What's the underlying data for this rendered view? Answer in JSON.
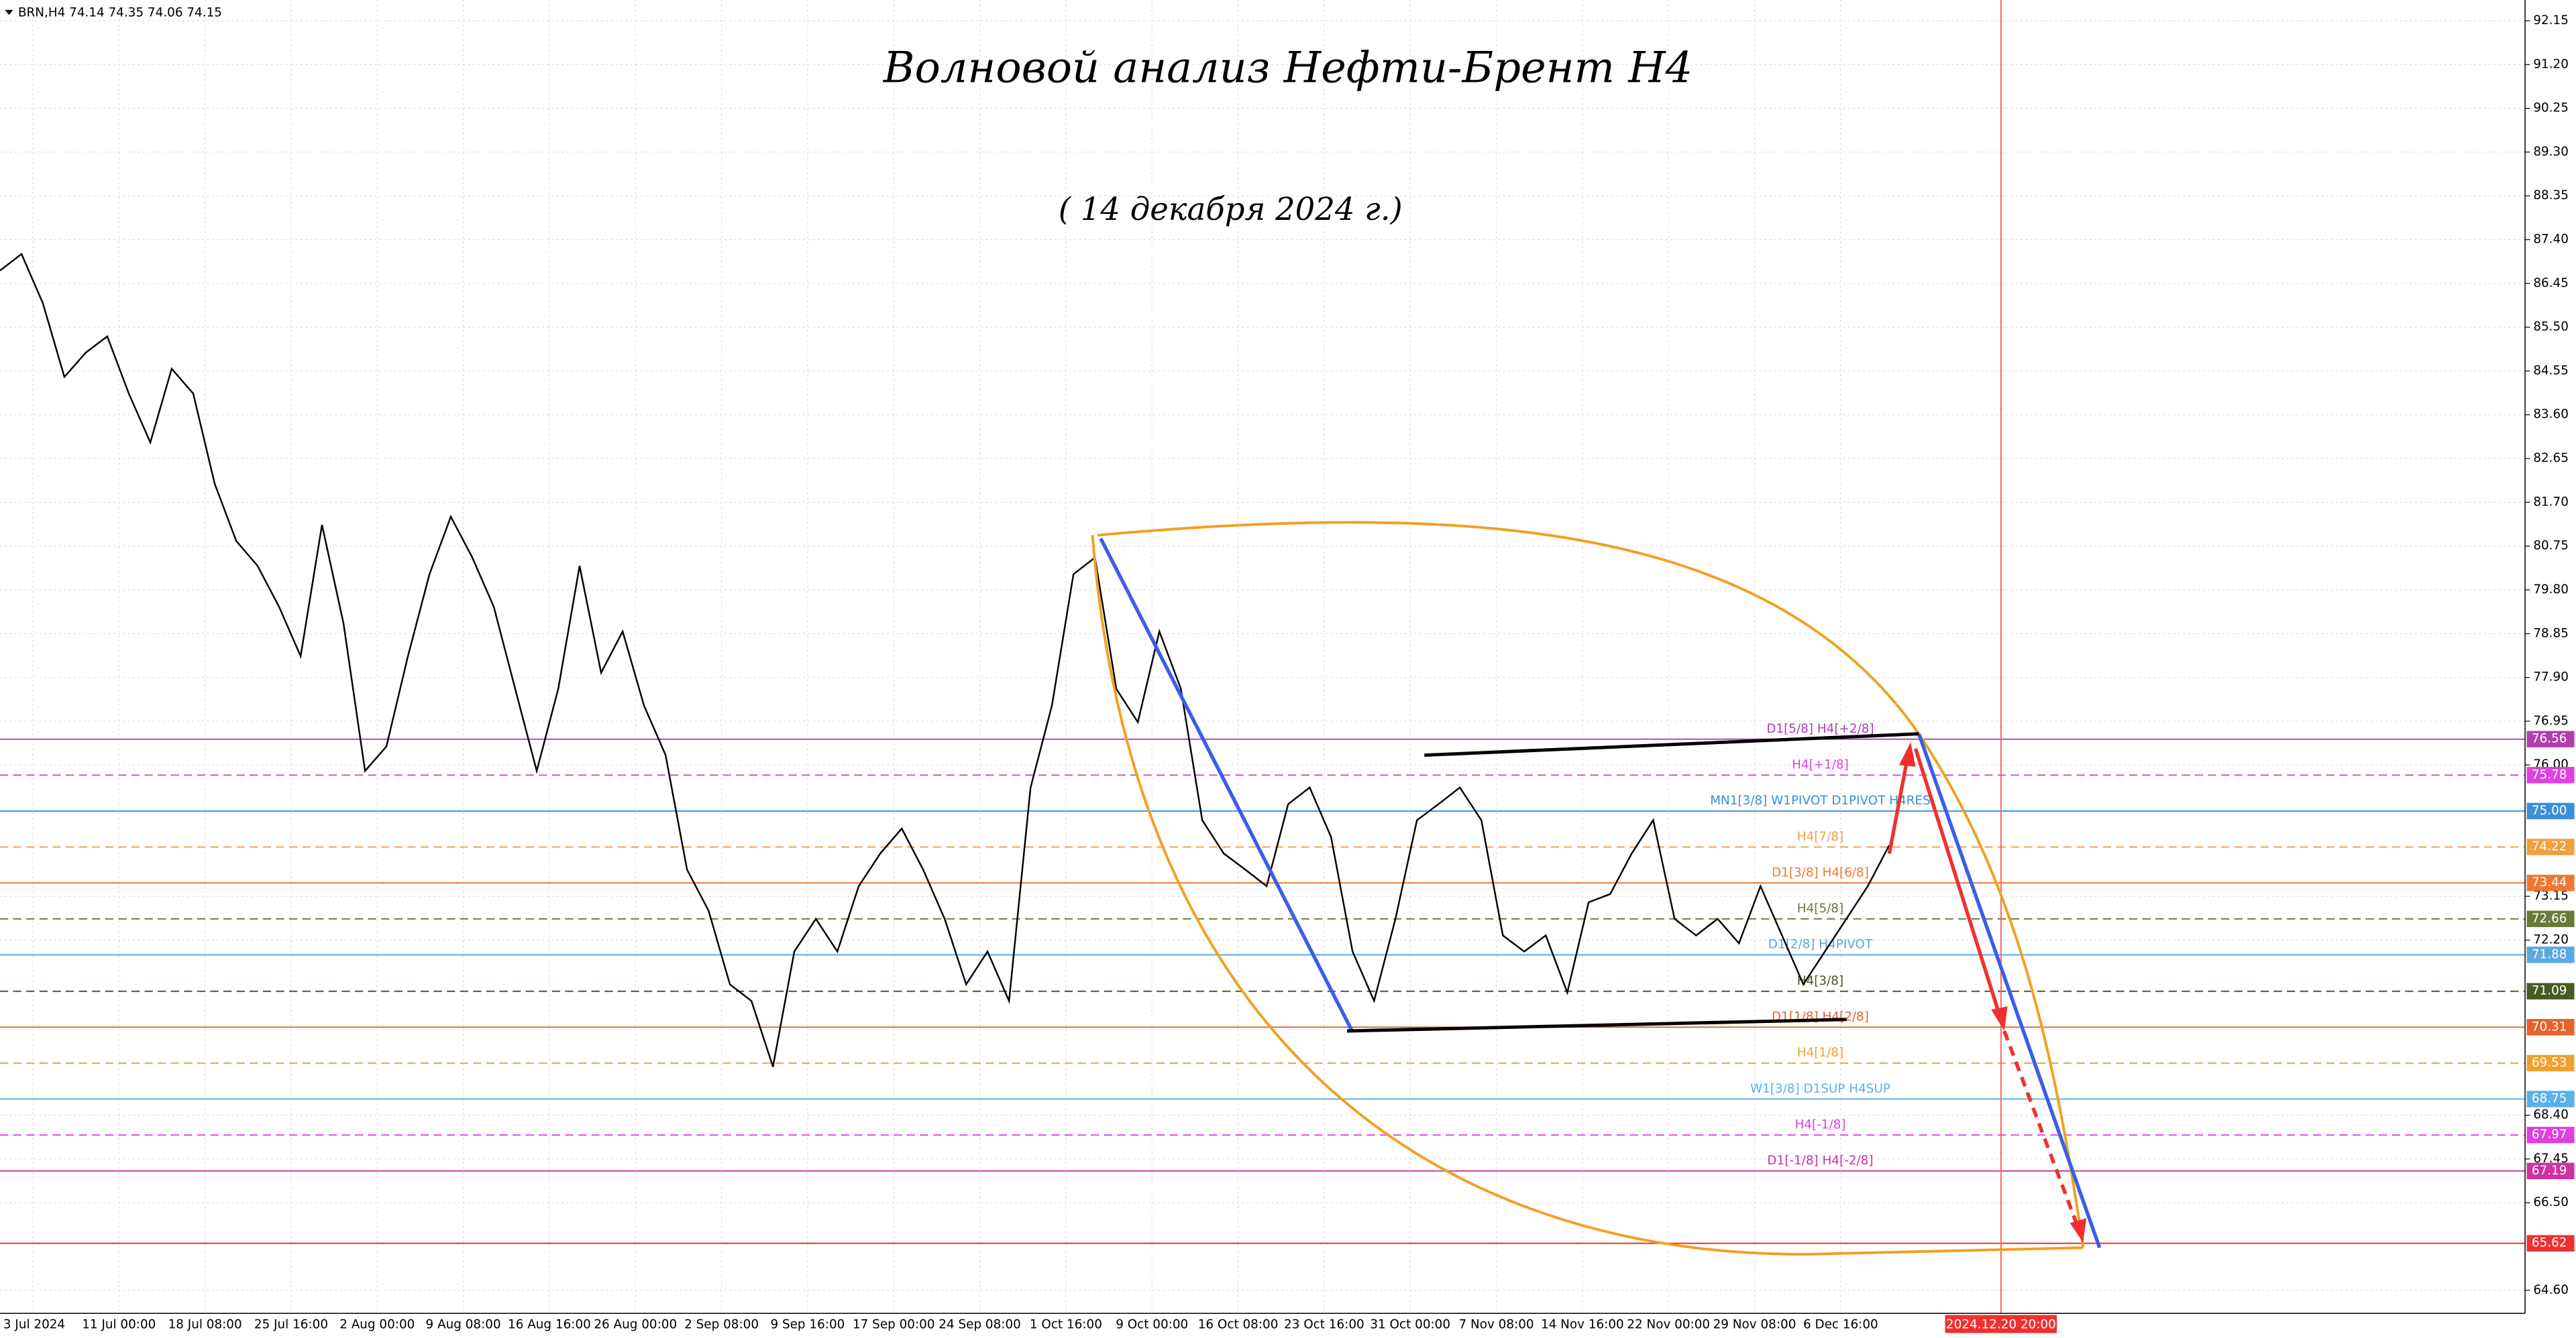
{
  "header": "BRN,H4  74.14 74.35 74.06 74.15",
  "chart_data": {
    "type": "line",
    "title": "Волновой анализ Нефти-Брент H4",
    "subtitle": "( 14 декабря 2024 г.)",
    "series": [
      {
        "name": "BRN",
        "color": "#000000",
        "values": [
          86.73,
          87.09,
          86.02,
          84.42,
          84.95,
          85.3,
          84.06,
          83.0,
          84.6,
          84.06,
          82.1,
          80.86,
          80.32,
          79.43,
          78.36,
          81.21,
          79.07,
          75.87,
          76.4,
          78.36,
          80.14,
          81.39,
          80.5,
          79.43,
          77.65,
          75.87,
          77.65,
          80.32,
          78.0,
          78.9,
          77.29,
          76.22,
          73.73,
          72.84,
          71.24,
          70.88,
          69.45,
          71.95,
          72.66,
          71.95,
          73.37,
          74.08,
          74.62,
          73.73,
          72.66,
          71.24,
          71.95,
          70.88,
          75.51,
          77.29,
          80.14,
          80.5,
          77.65,
          76.93,
          78.9,
          77.65,
          74.8,
          74.08,
          73.73,
          73.37,
          75.15,
          75.51,
          74.44,
          71.95,
          70.88,
          72.66,
          74.8,
          75.15,
          75.51,
          74.8,
          72.3,
          71.95,
          72.3,
          71.06,
          73.02,
          73.2,
          74.08,
          74.8,
          72.66,
          72.3,
          72.66,
          72.13,
          73.37,
          72.3,
          71.24,
          71.95,
          72.66,
          73.37,
          74.26
        ]
      }
    ],
    "ylim": [
      64.1,
      92.6
    ],
    "yticks": [
      92.15,
      {
        "value": 91.2,
        "label": "91.20"
      },
      90.25,
      {
        "value": 89.3,
        "label": "89.30"
      },
      88.35,
      {
        "value": 87.4,
        "label": "87.40"
      },
      86.45,
      {
        "value": 85.5,
        "label": "85.50"
      },
      84.55,
      {
        "value": 83.6,
        "label": "83.60"
      },
      82.65,
      {
        "value": 81.7,
        "label": "81.70"
      },
      80.75,
      {
        "value": 79.8,
        "label": "79.80"
      },
      78.85,
      {
        "value": 77.9,
        "label": "77.90"
      },
      76.95,
      {
        "value": 76,
        "label": "76.00"
      },
      73.15,
      {
        "value": 72.2,
        "label": "72.20"
      },
      {
        "value": 68.4,
        "label": "68.40"
      },
      67.45,
      {
        "value": 66.5,
        "label": "66.50"
      },
      {
        "value": 64.6,
        "label": "64.60"
      }
    ],
    "xtick_labels": [
      "3 Jul 2024",
      "11 Jul 00:00",
      "18 Jul 08:00",
      "25 Jul 16:00",
      "2 Aug 00:00",
      "9 Aug 08:00",
      "16 Aug 16:00",
      "26 Aug 00:00",
      "2 Sep 08:00",
      "9 Sep 16:00",
      "17 Sep 00:00",
      "24 Sep 08:00",
      "1 Oct 16:00",
      "9 Oct 00:00",
      "16 Oct 08:00",
      "23 Oct 16:00",
      "31 Oct 00:00",
      "7 Nov 08:00",
      "14 Nov 16:00",
      "22 Nov 00:00",
      "29 Nov 08:00",
      "6 Dec 16:00"
    ],
    "marker_label": "2024.12.20 20:00",
    "grid": true,
    "levels": [
      {
        "value": 76.56,
        "name": "D1[5/8] H4[+2/8]",
        "color": "#b040b0"
      },
      {
        "value": 75.78,
        "name": "H4[+1/8]",
        "color": "#e040e0",
        "dashed": true
      },
      {
        "value": 75,
        "label": "75.00",
        "name": "MN1[3/8] W1PIVOT D1PIVOT H4RES",
        "color": "#3a8fd8"
      },
      {
        "value": 74.22,
        "name": "H4[7/8]",
        "color": "#f0a040",
        "dashed": true
      },
      {
        "value": 73.44,
        "name": "D1[3/8] H4[6/8]",
        "color": "#f07830"
      },
      {
        "value": 72.66,
        "name": "H4[5/8]",
        "color": "#6b7a3a",
        "dashed": true
      },
      {
        "value": 71.88,
        "name": "D1[2/8] H4PIVOT",
        "color": "#5aa8e0"
      },
      {
        "value": 71.09,
        "name": "H4[3/8]",
        "color": "#4a5a20",
        "dashed": true
      },
      {
        "value": 70.31,
        "name": "D1[1/8] H4[2/8]",
        "color": "#e8602c"
      },
      {
        "value": 69.53,
        "name": "H4[1/8]",
        "color": "#f0a030",
        "dashed": true
      },
      {
        "value": 68.75,
        "name": "W1[3/8] D1SUP H4SUP",
        "color": "#5ab0e8"
      },
      {
        "value": 67.97,
        "name": "H4[-1/8]",
        "color": "#e040e0",
        "dashed": true
      },
      {
        "value": 67.19,
        "name": "D1[-1/8] H4[-2/8]",
        "color": "#d030a0"
      },
      {
        "value": 65.62,
        "color": "#f03030"
      }
    ]
  }
}
